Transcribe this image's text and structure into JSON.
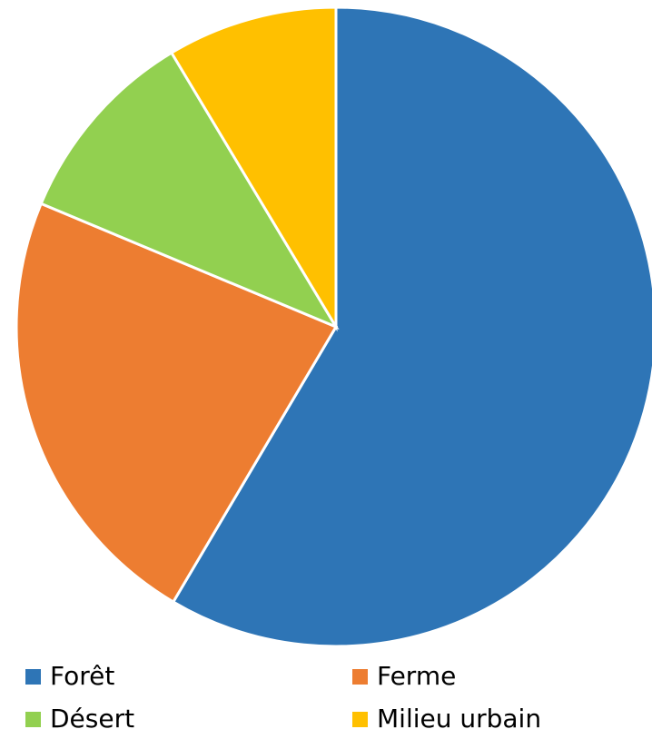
{
  "chart_data": {
    "type": "pie",
    "categories": [
      "Forêt",
      "Ferme",
      "Désert",
      "Milieu urbain"
    ],
    "values": [
      58.5,
      22.8,
      10.1,
      8.6
    ],
    "colors": [
      "#2e75b6",
      "#ed7d31",
      "#92d050",
      "#ffc000"
    ],
    "legend": "bottom"
  }
}
